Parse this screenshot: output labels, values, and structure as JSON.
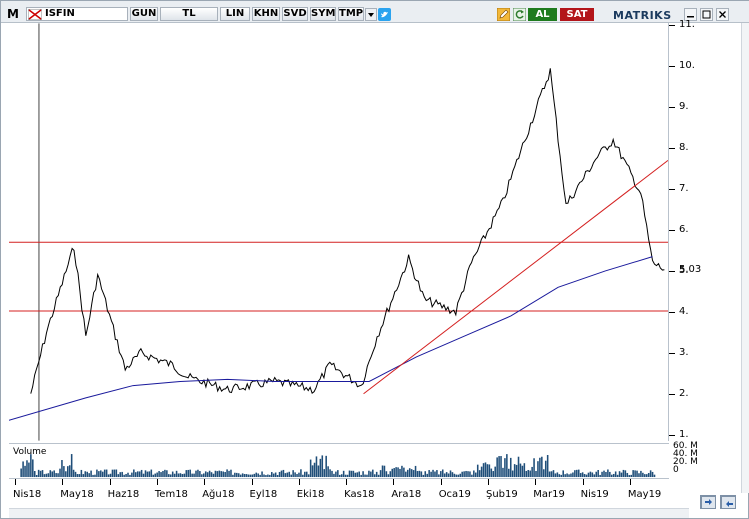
{
  "toolbar": {
    "app_letter": "M",
    "symbol": "ISFIN",
    "buttons": [
      "GUN",
      "TL",
      "LIN",
      "KHN",
      "SVD",
      "SYM",
      "TMP"
    ],
    "buy_label": "AL",
    "sell_label": "SAT",
    "brand": "MATRIKS",
    "buy_color": "#1e7b1e",
    "sell_color": "#b3151a"
  },
  "chart": {
    "y_ticks": [
      "1.",
      "2.",
      "3.",
      "4.",
      "5.",
      "6.",
      "7.",
      "8.",
      "9.",
      "10.",
      "11."
    ],
    "last_price_label": "5.03",
    "x_labels": [
      "Nis18",
      "May18",
      "Haz18",
      "Tem18",
      "Ağu18",
      "Eyl18",
      "Eki18",
      "Kas18",
      "Ara18",
      "Oca19",
      "Şub19",
      "Mar19",
      "Nis19",
      "May19"
    ],
    "volume_label": "Volume",
    "volume_ticks": [
      "60. M",
      "40. M",
      "20. M",
      "0"
    ],
    "colors": {
      "price": "#000000",
      "moving_average": "#1a1a9c",
      "horizontal_lines": "#d42020",
      "trendline": "#d42020",
      "volume": "#1f4e79"
    }
  },
  "chart_data": {
    "type": "line",
    "y_range": [
      1,
      11
    ],
    "horizontal_levels": [
      5.7,
      4.02
    ],
    "price_series_points": [
      [
        "Nis18",
        2.0
      ],
      [
        "Nis18",
        3.5
      ],
      [
        "May18",
        5.6
      ],
      [
        "May18",
        3.4
      ],
      [
        "May18",
        4.9
      ],
      [
        "Haz18",
        2.6
      ],
      [
        "Haz18",
        3.0
      ],
      [
        "Tem18",
        2.7
      ],
      [
        "Tem18",
        2.4
      ],
      [
        "Ağu18",
        2.1
      ],
      [
        "Eyl18",
        2.3
      ],
      [
        "Eki18",
        2.1
      ],
      [
        "Eki18",
        2.7
      ],
      [
        "Kas18",
        2.2
      ],
      [
        "Kas18",
        3.4
      ],
      [
        "Ara18",
        5.3
      ],
      [
        "Ara18",
        4.3
      ],
      [
        "Oca19",
        4.0
      ],
      [
        "Oca19",
        5.2
      ],
      [
        "Şub19",
        6.7
      ],
      [
        "Şub19",
        7.8
      ],
      [
        "Mar19",
        9.9
      ],
      [
        "Mar19",
        6.6
      ],
      [
        "Nis19",
        7.8
      ],
      [
        "Nis19",
        8.2
      ],
      [
        "May19",
        6.9
      ],
      [
        "May19",
        5.2
      ],
      [
        "May19",
        5.03
      ]
    ],
    "moving_average_points": [
      [
        "Nis18",
        1.35
      ],
      [
        "May18",
        1.9
      ],
      [
        "Haz18",
        2.2
      ],
      [
        "Tem18",
        2.3
      ],
      [
        "Ağu18",
        2.35
      ],
      [
        "Eyl18",
        2.3
      ],
      [
        "Eki18",
        2.3
      ],
      [
        "Kas18",
        2.3
      ],
      [
        "Ara18",
        2.9
      ],
      [
        "Oca19",
        3.4
      ],
      [
        "Şub19",
        3.9
      ],
      [
        "Mar19",
        4.6
      ],
      [
        "Nis19",
        5.0
      ],
      [
        "May19",
        5.35
      ]
    ],
    "trendline": [
      [
        "Kas18",
        2.0
      ],
      [
        "May19",
        7.7
      ]
    ]
  }
}
